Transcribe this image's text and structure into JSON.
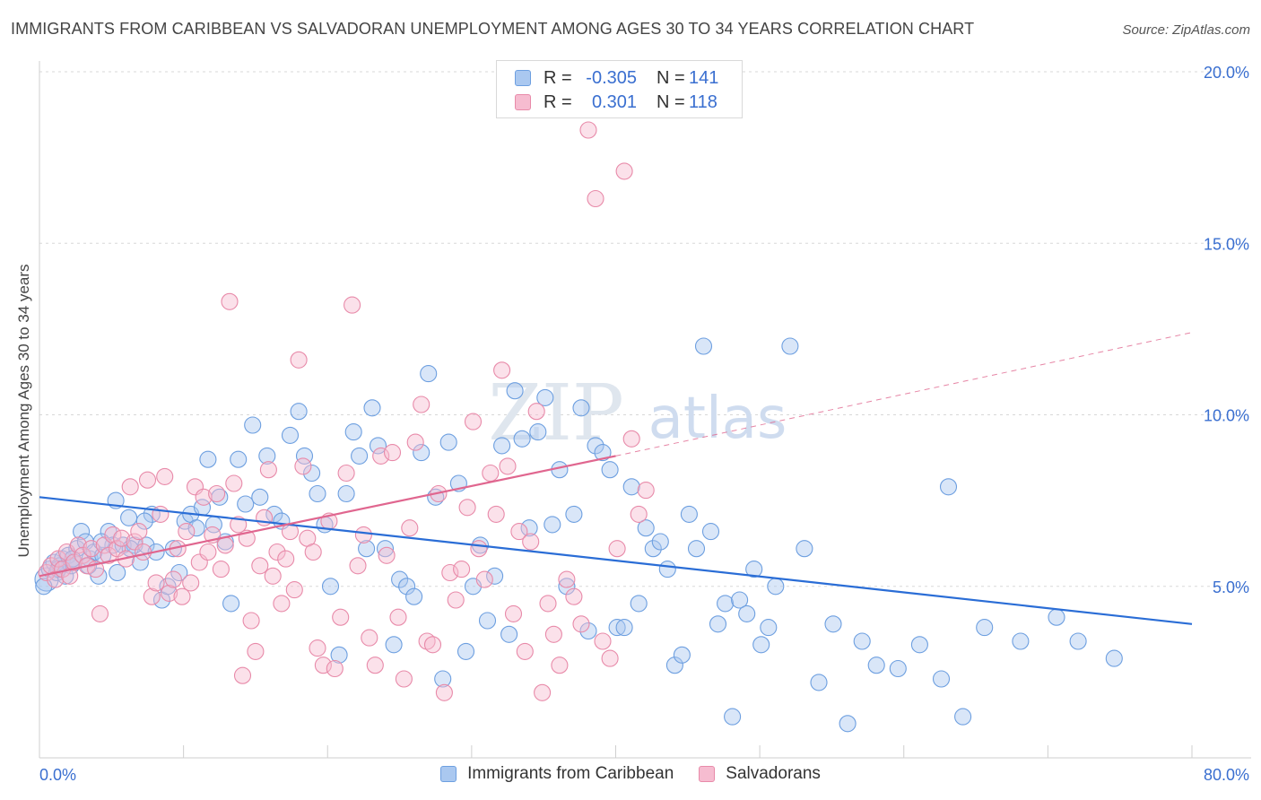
{
  "header": {
    "title": "IMMIGRANTS FROM CARIBBEAN VS SALVADORAN UNEMPLOYMENT AMONG AGES 30 TO 34 YEARS CORRELATION CHART",
    "source": "Source: ZipAtlas.com"
  },
  "watermark": {
    "zip": "ZIP",
    "atlas": "atlas"
  },
  "legend": {
    "rows": [
      {
        "r_label": "R =",
        "r_value": "-0.305",
        "n_label": "N =",
        "n_value": "141",
        "fill": "#aac8f0",
        "stroke": "#6d9fe0"
      },
      {
        "r_label": "R =",
        "r_value": "0.301",
        "n_label": "N =",
        "n_value": "118",
        "fill": "#f6bcd0",
        "stroke": "#e88aa9"
      }
    ],
    "bottom": [
      {
        "label": "Immigrants from Caribbean",
        "fill": "#aac8f0",
        "stroke": "#6d9fe0"
      },
      {
        "label": "Salvadorans",
        "fill": "#f6bcd0",
        "stroke": "#e88aa9"
      }
    ]
  },
  "chart_data": {
    "type": "scatter",
    "title": "IMMIGRANTS FROM CARIBBEAN VS SALVADORAN UNEMPLOYMENT AMONG AGES 30 TO 34 YEARS CORRELATION CHART",
    "xlabel": "",
    "ylabel": "Unemployment Among Ages 30 to 34 years",
    "xlim": [
      0,
      80
    ],
    "ylim": [
      0,
      20
    ],
    "x_tick_labels": [
      {
        "x": 0,
        "label": "0.0%"
      },
      {
        "x": 80,
        "label": "80.0%"
      }
    ],
    "y_tick_labels": [
      {
        "y": 5,
        "label": "5.0%"
      },
      {
        "y": 10,
        "label": "10.0%"
      },
      {
        "y": 15,
        "label": "15.0%"
      },
      {
        "y": 20,
        "label": "20.0%"
      }
    ],
    "grid": true,
    "colors": {
      "blue": "#2a6dd6",
      "pink": "#e0668f",
      "blue_fill": "#aac8f0",
      "pink_fill": "#f6bcd0"
    },
    "series": [
      {
        "name": "Immigrants from Caribbean",
        "color": "blue",
        "trend": {
          "x0": 0,
          "y0": 7.6,
          "x1": 80,
          "y1": 3.9,
          "dashed": false
        },
        "points": [
          [
            0.5,
            5.2
          ],
          [
            0.7,
            5.5
          ],
          [
            1.0,
            5.7
          ],
          [
            1.2,
            5.4
          ],
          [
            1.4,
            5.6
          ],
          [
            1.6,
            5.8
          ],
          [
            1.8,
            5.3
          ],
          [
            2.0,
            5.9
          ],
          [
            2.2,
            5.6
          ],
          [
            2.4,
            5.7
          ],
          [
            2.6,
            6.1
          ],
          [
            2.9,
            6.6
          ],
          [
            3.2,
            6.3
          ],
          [
            3.5,
            5.8
          ],
          [
            3.8,
            6.0
          ],
          [
            4.1,
            5.3
          ],
          [
            4.4,
            5.9
          ],
          [
            4.8,
            6.6
          ],
          [
            5.1,
            6.2
          ],
          [
            5.4,
            5.4
          ],
          [
            5.8,
            6.2
          ],
          [
            6.2,
            7.0
          ],
          [
            6.6,
            6.2
          ],
          [
            7.0,
            5.7
          ],
          [
            7.4,
            6.2
          ],
          [
            7.8,
            7.1
          ],
          [
            8.1,
            6.0
          ],
          [
            8.5,
            4.6
          ],
          [
            8.9,
            5.0
          ],
          [
            9.3,
            6.1
          ],
          [
            9.7,
            5.4
          ],
          [
            10.1,
            6.9
          ],
          [
            10.5,
            7.1
          ],
          [
            10.9,
            6.7
          ],
          [
            11.3,
            7.3
          ],
          [
            11.7,
            8.7
          ],
          [
            12.1,
            6.8
          ],
          [
            12.5,
            7.6
          ],
          [
            12.9,
            6.3
          ],
          [
            13.3,
            4.5
          ],
          [
            13.8,
            8.7
          ],
          [
            14.3,
            7.4
          ],
          [
            14.8,
            9.7
          ],
          [
            15.3,
            7.6
          ],
          [
            15.8,
            8.8
          ],
          [
            16.3,
            7.1
          ],
          [
            16.8,
            6.9
          ],
          [
            17.4,
            9.4
          ],
          [
            18.0,
            10.1
          ],
          [
            18.4,
            8.8
          ],
          [
            18.9,
            8.3
          ],
          [
            19.3,
            7.7
          ],
          [
            19.8,
            6.8
          ],
          [
            20.2,
            5.0
          ],
          [
            20.8,
            3.0
          ],
          [
            21.3,
            7.7
          ],
          [
            21.8,
            9.5
          ],
          [
            22.2,
            8.8
          ],
          [
            22.7,
            6.1
          ],
          [
            23.1,
            10.2
          ],
          [
            23.5,
            9.1
          ],
          [
            24.0,
            6.1
          ],
          [
            24.6,
            3.3
          ],
          [
            25.0,
            5.2
          ],
          [
            25.5,
            5.0
          ],
          [
            26.0,
            4.7
          ],
          [
            26.5,
            8.9
          ],
          [
            27.0,
            11.2
          ],
          [
            27.5,
            7.6
          ],
          [
            28.0,
            2.3
          ],
          [
            28.4,
            9.2
          ],
          [
            29.1,
            8.0
          ],
          [
            29.6,
            3.1
          ],
          [
            30.1,
            5.0
          ],
          [
            30.6,
            6.2
          ],
          [
            31.1,
            4.0
          ],
          [
            31.6,
            5.3
          ],
          [
            32.1,
            9.1
          ],
          [
            32.6,
            3.6
          ],
          [
            33.0,
            10.7
          ],
          [
            33.5,
            9.3
          ],
          [
            34.0,
            6.7
          ],
          [
            34.6,
            9.5
          ],
          [
            35.1,
            10.5
          ],
          [
            35.6,
            6.8
          ],
          [
            36.1,
            8.4
          ],
          [
            36.6,
            5.0
          ],
          [
            37.1,
            7.1
          ],
          [
            37.6,
            10.2
          ],
          [
            38.1,
            3.7
          ],
          [
            38.6,
            9.1
          ],
          [
            39.1,
            8.9
          ],
          [
            39.6,
            8.4
          ],
          [
            40.1,
            3.8
          ],
          [
            40.6,
            3.8
          ],
          [
            41.1,
            7.9
          ],
          [
            41.6,
            4.5
          ],
          [
            42.1,
            6.7
          ],
          [
            42.6,
            6.1
          ],
          [
            43.1,
            6.3
          ],
          [
            43.6,
            5.5
          ],
          [
            44.1,
            2.7
          ],
          [
            44.6,
            3.0
          ],
          [
            45.1,
            7.1
          ],
          [
            45.6,
            6.1
          ],
          [
            46.1,
            12.0
          ],
          [
            46.6,
            6.6
          ],
          [
            47.1,
            3.9
          ],
          [
            47.6,
            4.5
          ],
          [
            48.1,
            1.2
          ],
          [
            48.6,
            4.6
          ],
          [
            49.1,
            4.2
          ],
          [
            49.6,
            5.5
          ],
          [
            50.1,
            3.3
          ],
          [
            50.6,
            3.8
          ],
          [
            51.1,
            5.0
          ],
          [
            52.1,
            12.0
          ],
          [
            53.1,
            6.1
          ],
          [
            54.1,
            2.2
          ],
          [
            55.1,
            3.9
          ],
          [
            56.1,
            1.0
          ],
          [
            57.1,
            3.4
          ],
          [
            58.1,
            2.7
          ],
          [
            59.6,
            2.6
          ],
          [
            61.1,
            3.3
          ],
          [
            62.6,
            2.3
          ],
          [
            63.1,
            7.9
          ],
          [
            64.1,
            1.2
          ],
          [
            65.6,
            3.8
          ],
          [
            68.1,
            3.4
          ],
          [
            70.6,
            4.1
          ],
          [
            72.1,
            3.4
          ],
          [
            74.6,
            2.9
          ],
          [
            0.3,
            5.0
          ],
          [
            1.3,
            5.5
          ],
          [
            2.3,
            5.8
          ],
          [
            3.4,
            5.6
          ],
          [
            4.3,
            6.3
          ],
          [
            5.3,
            7.5
          ],
          [
            6.3,
            6.1
          ],
          [
            7.3,
            6.9
          ]
        ]
      },
      {
        "name": "Salvadorans",
        "color": "pink",
        "trend": {
          "x0": 0,
          "y0": 5.3,
          "x1": 40,
          "y1": 8.8,
          "dashed": false,
          "ext_x1": 80,
          "ext_y1": 12.4
        },
        "points": [
          [
            0.5,
            5.4
          ],
          [
            0.8,
            5.6
          ],
          [
            1.1,
            5.2
          ],
          [
            1.3,
            5.8
          ],
          [
            1.6,
            5.5
          ],
          [
            1.9,
            6.0
          ],
          [
            2.1,
            5.3
          ],
          [
            2.4,
            5.7
          ],
          [
            2.7,
            6.2
          ],
          [
            3.0,
            5.9
          ],
          [
            3.3,
            5.6
          ],
          [
            3.6,
            6.1
          ],
          [
            3.9,
            5.5
          ],
          [
            4.2,
            4.2
          ],
          [
            4.5,
            6.2
          ],
          [
            4.8,
            5.9
          ],
          [
            5.1,
            6.5
          ],
          [
            5.4,
            6.1
          ],
          [
            5.7,
            6.4
          ],
          [
            6.0,
            5.8
          ],
          [
            6.3,
            7.9
          ],
          [
            6.6,
            6.3
          ],
          [
            6.9,
            6.6
          ],
          [
            7.2,
            6.0
          ],
          [
            7.5,
            8.1
          ],
          [
            7.8,
            4.7
          ],
          [
            8.1,
            5.1
          ],
          [
            8.4,
            7.1
          ],
          [
            8.7,
            8.2
          ],
          [
            9.0,
            4.8
          ],
          [
            9.3,
            5.2
          ],
          [
            9.6,
            6.1
          ],
          [
            9.9,
            4.7
          ],
          [
            10.2,
            6.6
          ],
          [
            10.5,
            5.1
          ],
          [
            10.8,
            7.9
          ],
          [
            11.1,
            5.7
          ],
          [
            11.4,
            7.6
          ],
          [
            11.7,
            6.0
          ],
          [
            12.0,
            6.5
          ],
          [
            12.3,
            7.7
          ],
          [
            12.6,
            5.5
          ],
          [
            12.9,
            6.2
          ],
          [
            13.2,
            13.3
          ],
          [
            13.5,
            8.0
          ],
          [
            13.8,
            6.8
          ],
          [
            14.1,
            2.4
          ],
          [
            14.4,
            6.4
          ],
          [
            14.7,
            4.0
          ],
          [
            15.0,
            3.1
          ],
          [
            15.3,
            5.6
          ],
          [
            15.6,
            7.0
          ],
          [
            15.9,
            8.4
          ],
          [
            16.2,
            5.3
          ],
          [
            16.5,
            6.0
          ],
          [
            16.8,
            4.5
          ],
          [
            17.1,
            5.8
          ],
          [
            17.4,
            6.6
          ],
          [
            17.7,
            4.9
          ],
          [
            18.0,
            11.6
          ],
          [
            18.3,
            8.5
          ],
          [
            18.6,
            6.4
          ],
          [
            19.0,
            6.0
          ],
          [
            19.3,
            3.2
          ],
          [
            19.7,
            2.7
          ],
          [
            20.1,
            6.9
          ],
          [
            20.5,
            2.6
          ],
          [
            20.9,
            4.1
          ],
          [
            21.3,
            8.3
          ],
          [
            21.7,
            13.2
          ],
          [
            22.1,
            5.6
          ],
          [
            22.5,
            6.5
          ],
          [
            22.9,
            3.5
          ],
          [
            23.3,
            2.7
          ],
          [
            23.7,
            8.8
          ],
          [
            24.1,
            5.9
          ],
          [
            24.5,
            8.9
          ],
          [
            24.9,
            4.1
          ],
          [
            25.3,
            2.3
          ],
          [
            25.7,
            6.7
          ],
          [
            26.1,
            9.2
          ],
          [
            26.5,
            10.3
          ],
          [
            26.9,
            3.4
          ],
          [
            27.3,
            3.3
          ],
          [
            27.7,
            7.7
          ],
          [
            28.1,
            1.9
          ],
          [
            28.5,
            5.4
          ],
          [
            28.9,
            4.6
          ],
          [
            29.3,
            5.5
          ],
          [
            29.7,
            7.3
          ],
          [
            30.1,
            9.8
          ],
          [
            30.5,
            6.1
          ],
          [
            30.9,
            5.2
          ],
          [
            31.3,
            8.3
          ],
          [
            31.7,
            7.1
          ],
          [
            32.1,
            11.3
          ],
          [
            32.5,
            8.5
          ],
          [
            32.9,
            4.2
          ],
          [
            33.3,
            6.6
          ],
          [
            33.7,
            3.1
          ],
          [
            34.1,
            6.3
          ],
          [
            34.5,
            10.1
          ],
          [
            34.9,
            1.9
          ],
          [
            35.3,
            4.5
          ],
          [
            35.7,
            3.6
          ],
          [
            36.1,
            2.7
          ],
          [
            36.6,
            5.2
          ],
          [
            37.1,
            4.7
          ],
          [
            37.6,
            3.9
          ],
          [
            38.1,
            18.3
          ],
          [
            38.6,
            16.3
          ],
          [
            39.1,
            3.4
          ],
          [
            39.6,
            2.9
          ],
          [
            40.1,
            6.1
          ],
          [
            40.6,
            17.1
          ],
          [
            41.1,
            9.3
          ],
          [
            41.6,
            7.1
          ],
          [
            42.1,
            7.8
          ]
        ]
      }
    ]
  }
}
